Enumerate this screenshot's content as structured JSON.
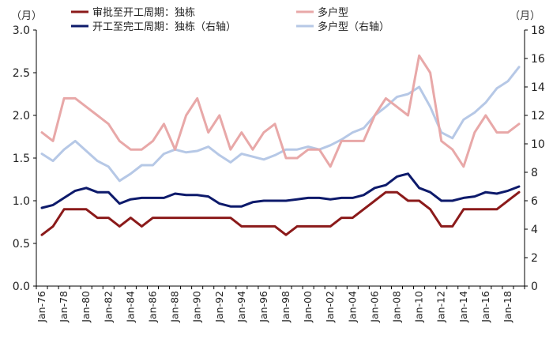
{
  "chart_data": {
    "type": "line",
    "x": [
      "1976",
      "1977",
      "1978",
      "1979",
      "1980",
      "1981",
      "1982",
      "1983",
      "1984",
      "1985",
      "1986",
      "1987",
      "1988",
      "1989",
      "1990",
      "1991",
      "1992",
      "1993",
      "1994",
      "1995",
      "1996",
      "1997",
      "1998",
      "1999",
      "2000",
      "2001",
      "2002",
      "2003",
      "2004",
      "2005",
      "2006",
      "2007",
      "2008",
      "2009",
      "2010",
      "2011",
      "2012",
      "2013",
      "2014",
      "2015",
      "2016",
      "2017",
      "2018",
      "2019"
    ],
    "x_tick_labels": [
      "Jan-76",
      "Jan-78",
      "Jan-80",
      "Jan-82",
      "Jan-84",
      "Jan-86",
      "Jan-88",
      "Jan-90",
      "Jan-92",
      "Jan-94",
      "Jan-96",
      "Jan-98",
      "Jan-00",
      "Jan-02",
      "Jan-04",
      "Jan-06",
      "Jan-08",
      "Jan-10",
      "Jan-12",
      "Jan-14",
      "Jan-16",
      "Jan-18"
    ],
    "left_axis": {
      "unit_label": "（月）",
      "ylim": [
        0,
        3.0
      ],
      "ticks": [
        "0.0",
        "0.5",
        "1.0",
        "1.5",
        "2.0",
        "2.5",
        "3.0"
      ]
    },
    "right_axis": {
      "unit_label": "（月）",
      "ylim": [
        0,
        18
      ],
      "ticks": [
        "0",
        "2",
        "4",
        "6",
        "8",
        "10",
        "12",
        "14",
        "16",
        "18"
      ]
    },
    "series": [
      {
        "name": "审批至开工周期：独栋",
        "axis": "left",
        "color": "#8B1A1A",
        "values": [
          0.6,
          0.7,
          0.9,
          0.9,
          0.9,
          0.8,
          0.8,
          0.7,
          0.8,
          0.7,
          0.8,
          0.8,
          0.8,
          0.8,
          0.8,
          0.8,
          0.8,
          0.8,
          0.7,
          0.7,
          0.7,
          0.7,
          0.6,
          0.7,
          0.7,
          0.7,
          0.7,
          0.8,
          0.8,
          0.9,
          1.0,
          1.1,
          1.1,
          1.0,
          1.0,
          0.9,
          0.7,
          0.7,
          0.9,
          0.9,
          0.9,
          0.9,
          1.0,
          1.1
        ]
      },
      {
        "name": "多户型",
        "axis": "left",
        "color": "#E8A8A8",
        "values": [
          1.8,
          1.7,
          2.2,
          2.2,
          2.1,
          2.0,
          1.9,
          1.7,
          1.6,
          1.6,
          1.7,
          1.9,
          1.6,
          2.0,
          2.2,
          1.8,
          2.0,
          1.6,
          1.8,
          1.6,
          1.8,
          1.9,
          1.5,
          1.5,
          1.6,
          1.6,
          1.4,
          1.7,
          1.7,
          1.7,
          2.0,
          2.2,
          2.1,
          2.0,
          2.7,
          2.5,
          1.7,
          1.6,
          1.4,
          1.8,
          2.0,
          1.8,
          1.8,
          1.9
        ]
      },
      {
        "name": "开工至完工周期：独栋（右轴）",
        "axis": "right",
        "color": "#0D1A6B",
        "values": [
          5.5,
          5.7,
          6.2,
          6.7,
          6.9,
          6.6,
          6.6,
          5.8,
          6.1,
          6.2,
          6.2,
          6.2,
          6.5,
          6.4,
          6.4,
          6.3,
          5.8,
          5.6,
          5.6,
          5.9,
          6.0,
          6.0,
          6.0,
          6.1,
          6.2,
          6.2,
          6.1,
          6.2,
          6.2,
          6.4,
          6.9,
          7.1,
          7.7,
          7.9,
          6.9,
          6.6,
          6.0,
          6.0,
          6.2,
          6.3,
          6.6,
          6.5,
          6.7,
          7.0
        ]
      },
      {
        "name": "多户型（右轴）",
        "axis": "right",
        "color": "#B6C8E6",
        "values": [
          9.3,
          8.8,
          9.6,
          10.2,
          9.5,
          8.8,
          8.4,
          7.4,
          7.9,
          8.5,
          8.5,
          9.3,
          9.6,
          9.4,
          9.5,
          9.8,
          9.2,
          8.7,
          9.3,
          9.1,
          8.9,
          9.2,
          9.6,
          9.6,
          9.8,
          9.6,
          9.9,
          10.3,
          10.8,
          11.1,
          12.0,
          12.6,
          13.3,
          13.5,
          14.0,
          12.6,
          10.8,
          10.4,
          11.7,
          12.2,
          12.9,
          13.9,
          14.4,
          15.4
        ]
      }
    ]
  }
}
